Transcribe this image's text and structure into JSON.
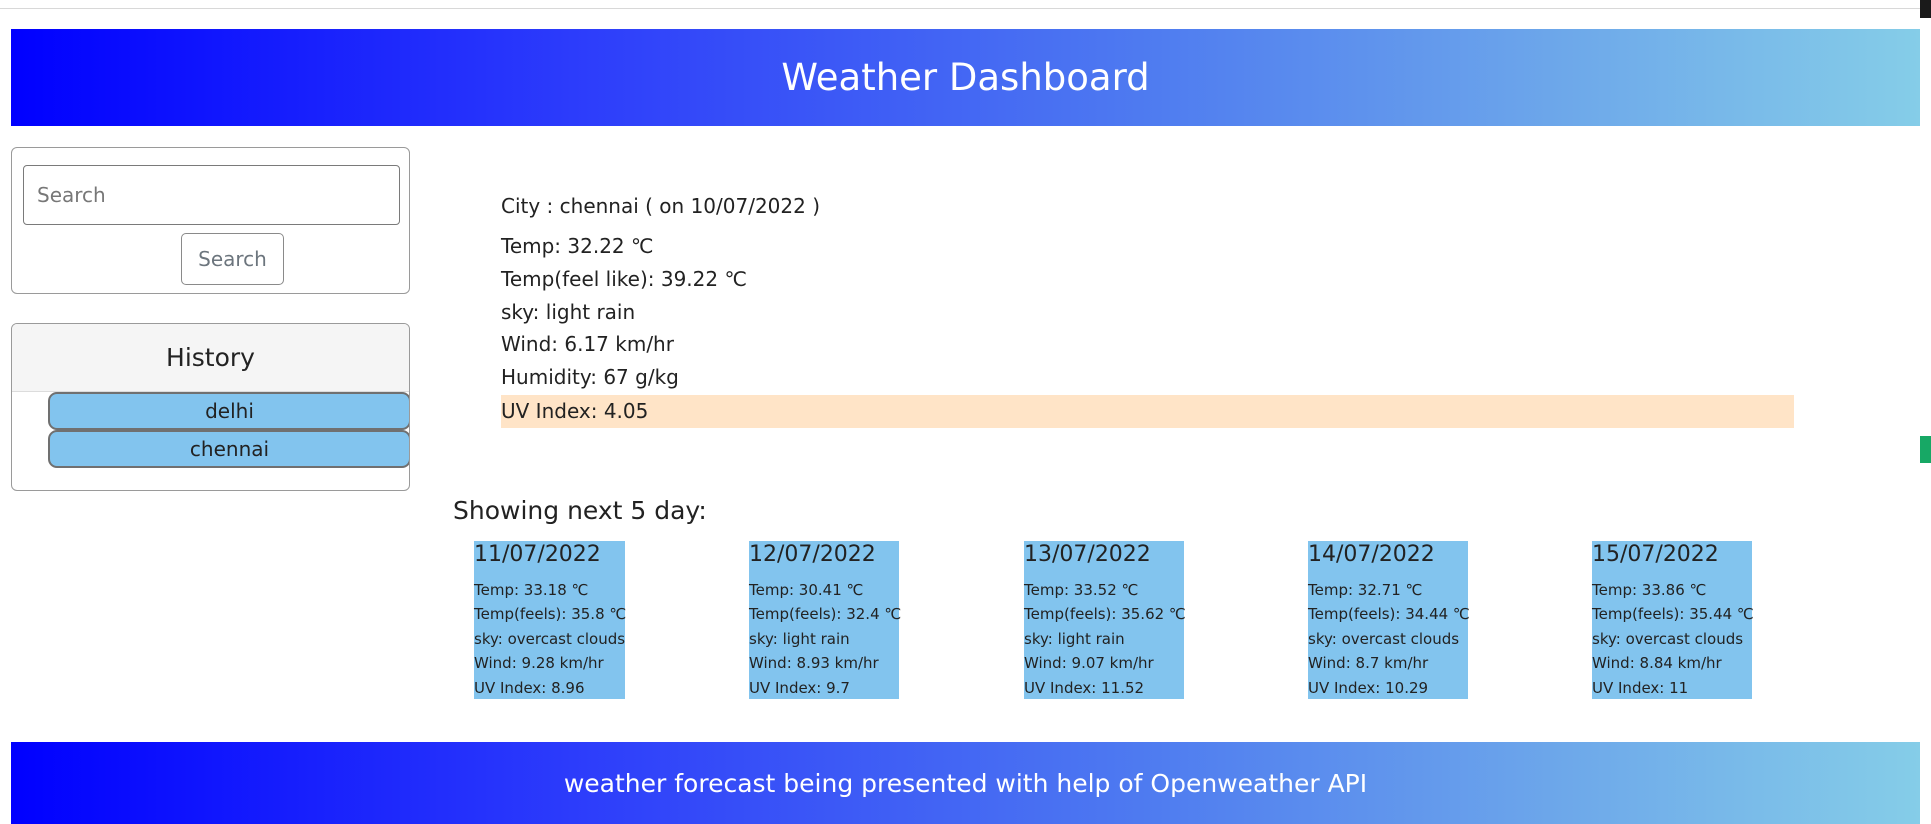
{
  "header": {
    "title": "Weather Dashboard"
  },
  "search": {
    "placeholder": "Search",
    "button_label": "Search"
  },
  "history": {
    "title": "History",
    "items": [
      "delhi",
      "chennai"
    ]
  },
  "current": {
    "city_line": "City : chennai ( on 10/07/2022 )",
    "temp": "Temp: 32.22 ℃",
    "feels_like": "Temp(feel like): 39.22 ℃",
    "sky": "sky: light rain",
    "wind": "Wind: 6.17 km/hr",
    "humidity": "Humidity: 67 g/kg",
    "uv": "UV Index: 4.05"
  },
  "forecast": {
    "title": "Showing next 5 day:",
    "days": [
      {
        "date": "11/07/2022",
        "temp": "Temp: 33.18 ℃",
        "feels": "Temp(feels): 35.8 ℃",
        "sky": "sky: overcast clouds",
        "wind": "Wind: 9.28 km/hr",
        "uv": "UV Index: 8.96"
      },
      {
        "date": "12/07/2022",
        "temp": "Temp: 30.41 ℃",
        "feels": "Temp(feels): 32.4 ℃",
        "sky": "sky: light rain",
        "wind": "Wind: 8.93 km/hr",
        "uv": "UV Index: 9.7"
      },
      {
        "date": "13/07/2022",
        "temp": "Temp: 33.52 ℃",
        "feels": "Temp(feels): 35.62 ℃",
        "sky": "sky: light rain",
        "wind": "Wind: 9.07 km/hr",
        "uv": "UV Index: 11.52"
      },
      {
        "date": "14/07/2022",
        "temp": "Temp: 32.71 ℃",
        "feels": "Temp(feels): 34.44 ℃",
        "sky": "sky: overcast clouds",
        "wind": "Wind: 8.7 km/hr",
        "uv": "UV Index: 10.29"
      },
      {
        "date": "15/07/2022",
        "temp": "Temp: 33.86 ℃",
        "feels": "Temp(feels): 35.44 ℃",
        "sky": "sky: overcast clouds",
        "wind": "Wind: 8.84 km/hr",
        "uv": "UV Index: 11"
      }
    ]
  },
  "footer": {
    "text": "weather forecast being presented with help of Openweather API"
  },
  "colors": {
    "gradient_start": "#0000ff",
    "gradient_end": "#85cde8",
    "card_blue": "#82c4ee",
    "uv_highlight": "#ffe4c7"
  }
}
